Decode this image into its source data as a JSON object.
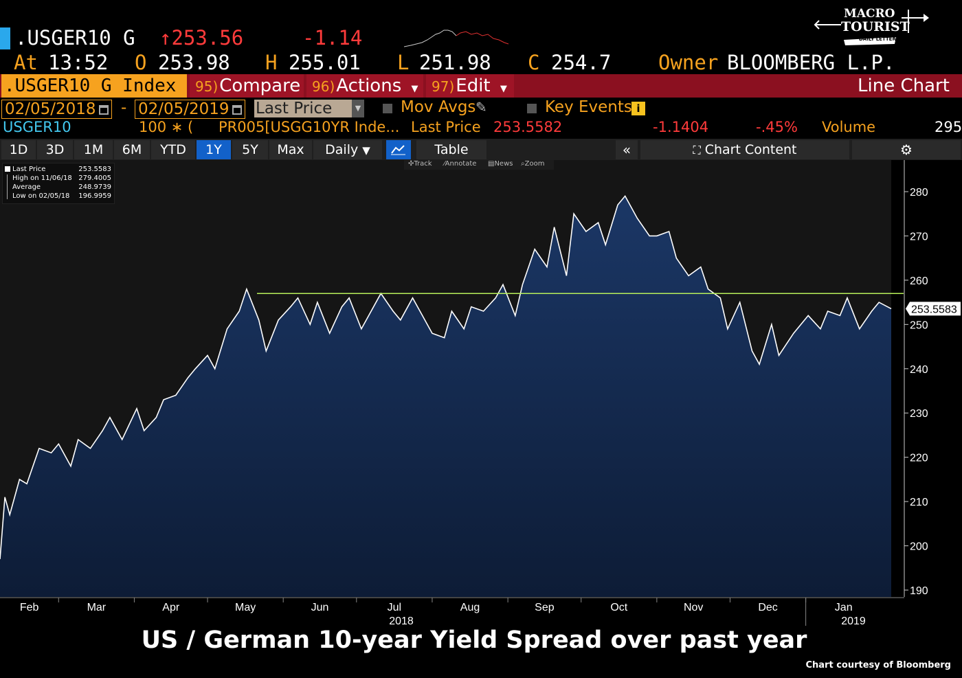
{
  "header": {
    "ticker": ".USGER10 G",
    "last": "↑253.56",
    "change": "-1.14",
    "at_label": "At",
    "time": "13:52",
    "open_label": "O",
    "open": "253.98",
    "high_label": "H",
    "high": "255.01",
    "low_label": "L",
    "low": "251.98",
    "close_label": "C",
    "close": "254.7",
    "owner_label": "Owner",
    "owner": "BLOOMBERG L.P."
  },
  "function_bar": {
    "security": ".USGER10 G Index",
    "compare_num": "95)",
    "compare": "Compare",
    "actions_num": "96)",
    "actions": "Actions",
    "edit_num": "97)",
    "edit": "Edit",
    "chart_type": "Line Chart"
  },
  "controls": {
    "start_date": "02/05/2018",
    "dash": "-",
    "end_date": "02/05/2019",
    "field": "Last Price",
    "mov_avgs": "Mov Avgs",
    "key_events": "Key Events"
  },
  "series_row": {
    "name": "USGER10",
    "multiplier": "100 ∗ (",
    "formula": "PR005[USGG10YR Inde...",
    "last_price_label": "Last Price",
    "last_price": "253.5582",
    "change": "-1.1404",
    "pct": "-.45%",
    "volume_label": "Volume",
    "volume": "295"
  },
  "toolbar": {
    "periods": [
      "1D",
      "3D",
      "1M",
      "6M",
      "YTD",
      "1Y",
      "5Y",
      "Max"
    ],
    "active_period": "1Y",
    "frequency": "Daily",
    "table": "Table",
    "chart_content": "Chart Content"
  },
  "legend": {
    "rows": [
      {
        "label": "Last Price",
        "value": "253.5583"
      },
      {
        "label": "High on 11/06/18",
        "value": "279.4005"
      },
      {
        "label": "Average",
        "value": "248.9739"
      },
      {
        "label": "Low on 02/05/18",
        "value": "196.9959"
      }
    ]
  },
  "tools": [
    "Track",
    "Annotate",
    "News",
    "Zoom"
  ],
  "caption": "US / German 10-year Yield Spread over past year",
  "credit": "Chart courtesy of Bloomberg",
  "logo": {
    "line1": "MACRO",
    "line2": "TOURIST",
    "line3": "DAILY LETTER"
  },
  "colors": {
    "orange": "#f6a21f",
    "red_bar": "#8b1020",
    "area_fill": "#13294b",
    "line": "#ffffff",
    "reference_line": "#b8f05a",
    "active_button": "#1261c9"
  },
  "chart_data": {
    "type": "area",
    "title": "",
    "xlabel": "",
    "ylabel": "",
    "ylim": [
      189,
      284
    ],
    "y_ticks": [
      190,
      200,
      210,
      220,
      230,
      240,
      250,
      260,
      270,
      280
    ],
    "x_ticks": [
      "Feb",
      "Mar",
      "Apr",
      "May",
      "Jun",
      "Jul",
      "Aug",
      "Sep",
      "Oct",
      "Nov",
      "Dec",
      "Jan"
    ],
    "year_labels": [
      "2018",
      "2019"
    ],
    "last_value_label": "253.5583",
    "reference_line": 257,
    "series": [
      {
        "dates": [
          "2018-02-05",
          "2018-02-07",
          "2018-02-09",
          "2018-02-13",
          "2018-02-16",
          "2018-02-21",
          "2018-02-26",
          "2018-03-01",
          "2018-03-06",
          "2018-03-09",
          "2018-03-14",
          "2018-03-19",
          "2018-03-22",
          "2018-03-27",
          "2018-04-02",
          "2018-04-05",
          "2018-04-10",
          "2018-04-13",
          "2018-04-18",
          "2018-04-23",
          "2018-04-26",
          "2018-05-01",
          "2018-05-04",
          "2018-05-09",
          "2018-05-14",
          "2018-05-17",
          "2018-05-22",
          "2018-05-25",
          "2018-05-30",
          "2018-06-04",
          "2018-06-07",
          "2018-06-12",
          "2018-06-15",
          "2018-06-20",
          "2018-06-25",
          "2018-06-28",
          "2018-07-03",
          "2018-07-06",
          "2018-07-11",
          "2018-07-16",
          "2018-07-19",
          "2018-07-24",
          "2018-07-27",
          "2018-08-01",
          "2018-08-06",
          "2018-08-09",
          "2018-08-14",
          "2018-08-17",
          "2018-08-22",
          "2018-08-27",
          "2018-08-30",
          "2018-09-04",
          "2018-09-07",
          "2018-09-12",
          "2018-09-17",
          "2018-09-20",
          "2018-09-25",
          "2018-09-28",
          "2018-10-03",
          "2018-10-08",
          "2018-10-11",
          "2018-10-16",
          "2018-10-19",
          "2018-10-24",
          "2018-10-29",
          "2018-11-01",
          "2018-11-06",
          "2018-11-09",
          "2018-11-14",
          "2018-11-19",
          "2018-11-22",
          "2018-11-27",
          "2018-11-30",
          "2018-12-05",
          "2018-12-10",
          "2018-12-13",
          "2018-12-18",
          "2018-12-21",
          "2018-12-27",
          "2019-01-02",
          "2019-01-07",
          "2019-01-10",
          "2019-01-15",
          "2019-01-18",
          "2019-01-23",
          "2019-01-28",
          "2019-01-31",
          "2019-02-05"
        ],
        "values": [
          197,
          211,
          207,
          215,
          214,
          222,
          221,
          223,
          218,
          224,
          222,
          226,
          229,
          224,
          231,
          226,
          229,
          233,
          234,
          238,
          240,
          243,
          240,
          249,
          253,
          258,
          251,
          244,
          251,
          254,
          256,
          250,
          255,
          248,
          254,
          256,
          249,
          252,
          257,
          253,
          251,
          256,
          253,
          248,
          247,
          253,
          249,
          254,
          253,
          256,
          259,
          252,
          259,
          267,
          263,
          272,
          261,
          275,
          271,
          273,
          268,
          277,
          279,
          274,
          270,
          270,
          271,
          265,
          261,
          263,
          258,
          256,
          249,
          255,
          244,
          241,
          250,
          243,
          248,
          252,
          249,
          253,
          252,
          256,
          249,
          253,
          255,
          253.56
        ]
      }
    ]
  }
}
